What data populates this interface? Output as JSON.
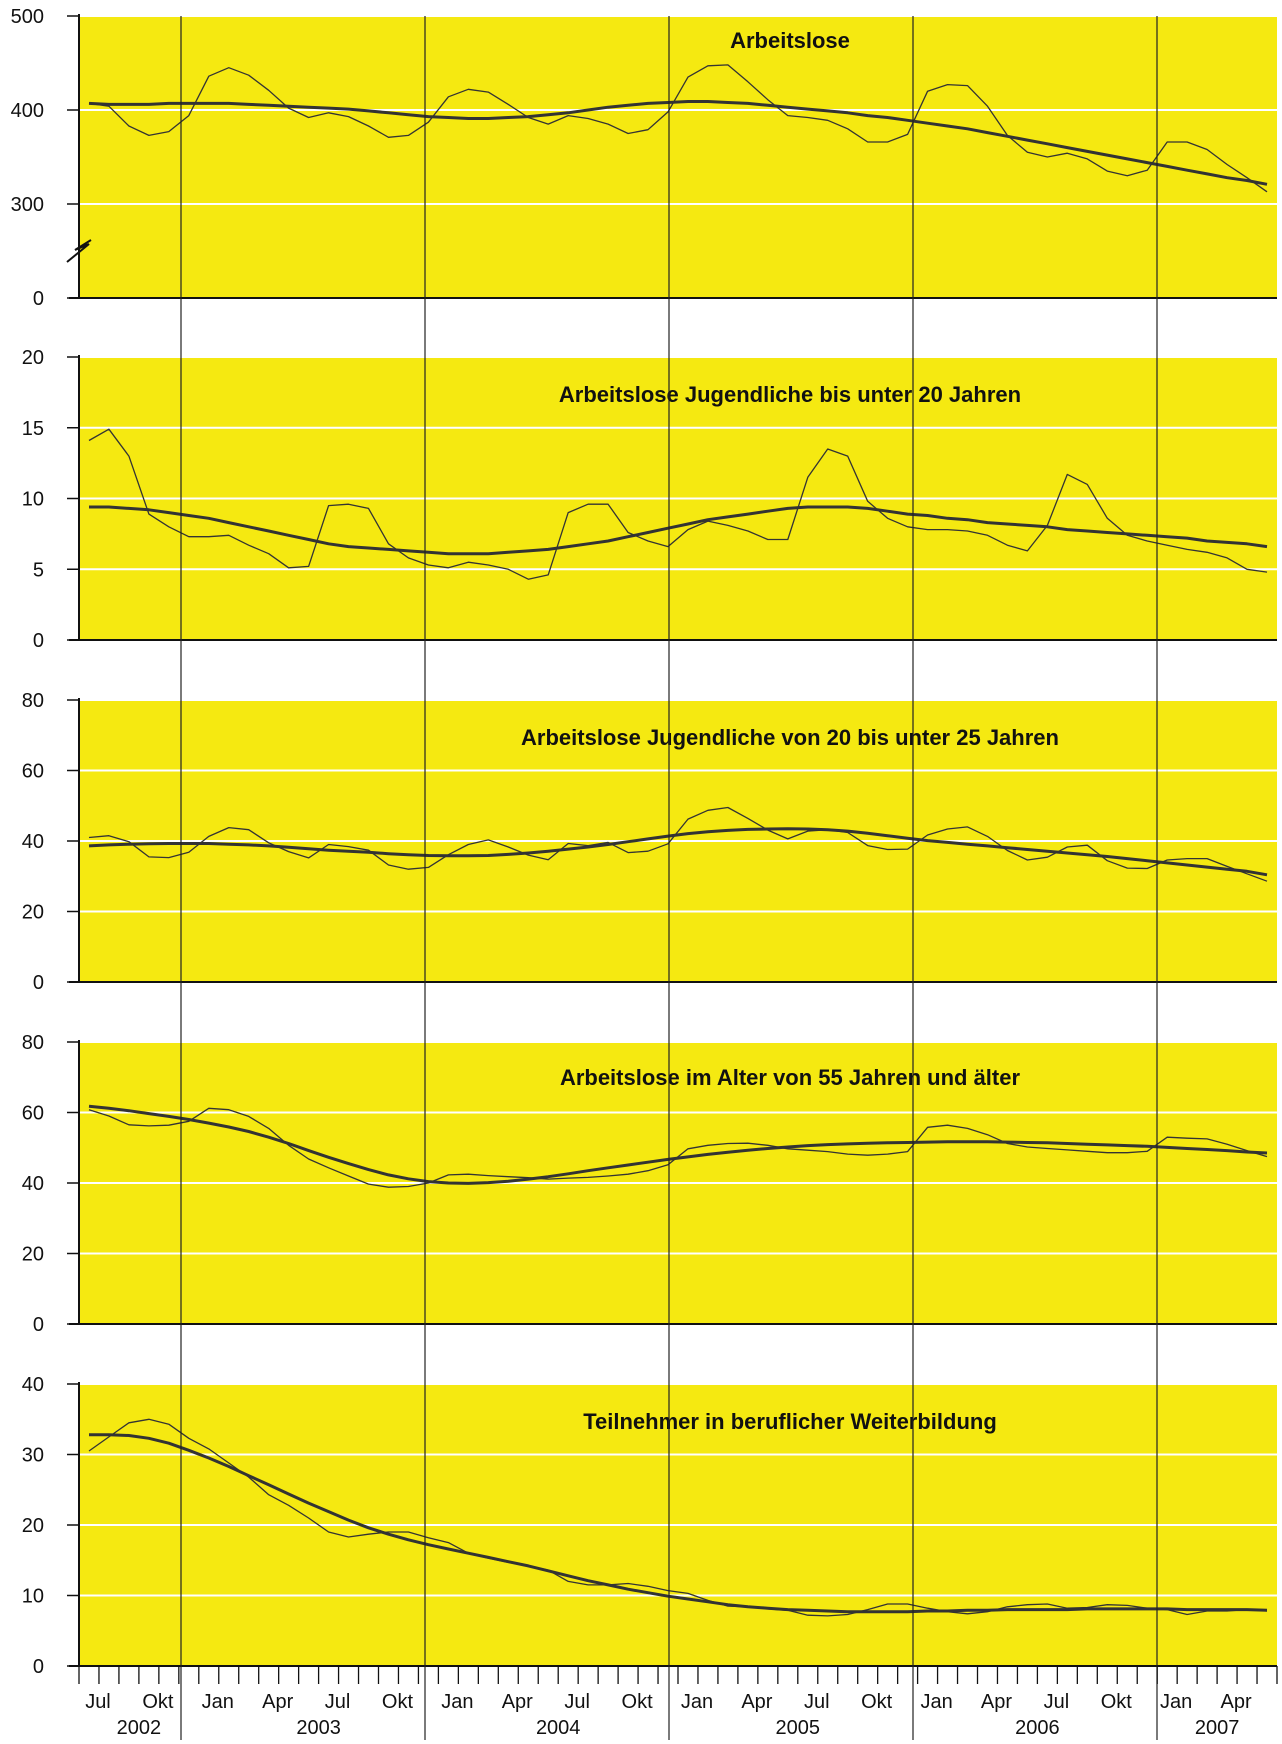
{
  "chart_data": {
    "type": "line",
    "x_month_labels": [
      "Jul",
      "",
      "",
      "Okt",
      "",
      "",
      "Jan",
      "",
      "",
      "Apr",
      "",
      "",
      "Jul",
      "",
      "",
      "Okt",
      "",
      "",
      "Jan",
      "",
      "",
      "Apr",
      "",
      "",
      "Jul",
      "",
      "",
      "Okt",
      "",
      "",
      "Jan",
      "",
      "",
      "Apr",
      "",
      "",
      "Jul",
      "",
      "",
      "Okt",
      "",
      "",
      "Jan",
      "",
      "",
      "Apr",
      "",
      "",
      "Jul",
      "",
      "",
      "Okt",
      "",
      "",
      "Jan",
      "",
      "",
      "Apr",
      "",
      ""
    ],
    "x_months": [
      "2002-07",
      "2002-08",
      "2002-09",
      "2002-10",
      "2002-11",
      "2002-12",
      "2003-01",
      "2003-02",
      "2003-03",
      "2003-04",
      "2003-05",
      "2003-06",
      "2003-07",
      "2003-08",
      "2003-09",
      "2003-10",
      "2003-11",
      "2003-12",
      "2004-01",
      "2004-02",
      "2004-03",
      "2004-04",
      "2004-05",
      "2004-06",
      "2004-07",
      "2004-08",
      "2004-09",
      "2004-10",
      "2004-11",
      "2004-12",
      "2005-01",
      "2005-02",
      "2005-03",
      "2005-04",
      "2005-05",
      "2005-06",
      "2005-07",
      "2005-08",
      "2005-09",
      "2005-10",
      "2005-11",
      "2005-12",
      "2006-01",
      "2006-02",
      "2006-03",
      "2006-04",
      "2006-05",
      "2006-06",
      "2006-07",
      "2006-08",
      "2006-09",
      "2006-10",
      "2006-11",
      "2006-12",
      "2007-01",
      "2007-02",
      "2007-03",
      "2007-04",
      "2007-05",
      "2007-06"
    ],
    "year_labels": [
      {
        "label": "2002",
        "start": 0,
        "end": 6
      },
      {
        "label": "2003",
        "start": 6,
        "end": 18
      },
      {
        "label": "2004",
        "start": 18,
        "end": 30
      },
      {
        "label": "2005",
        "start": 30,
        "end": 42
      },
      {
        "label": "2006",
        "start": 42,
        "end": 54
      },
      {
        "label": "2007",
        "start": 54,
        "end": 60
      }
    ],
    "grid": true,
    "background_color": "#f5e911",
    "line_color": "#333333",
    "panels": [
      {
        "title": "Arbeitslose",
        "ylim": [
          0,
          500
        ],
        "yticks": [
          0,
          300,
          400,
          500
        ],
        "axis_break": true,
        "series": [
          {
            "values": [
              407,
              404,
              383,
              373,
              377,
              394,
              436,
              445,
              437,
              421,
              402,
              392,
              397,
              393,
              383,
              371,
              373,
              387,
              414,
              422,
              419,
              406,
              392,
              385,
              394,
              391,
              385,
              375,
              379,
              398,
              435,
              447,
              448,
              430,
              411,
              394,
              392,
              389,
              380,
              366,
              366,
              374,
              420,
              427,
              426,
              404,
              373,
              355,
              350,
              354,
              348,
              335,
              330,
              336,
              366,
              366,
              358,
              342,
              328,
              313
            ]
          },
          {
            "values": [
              407,
              406,
              406,
              406,
              407,
              407,
              407,
              407,
              406,
              405,
              404,
              403,
              402,
              401,
              399,
              397,
              395,
              393,
              392,
              391,
              391,
              392,
              393,
              395,
              397,
              400,
              403,
              405,
              407,
              408,
              409,
              409,
              408,
              407,
              405,
              403,
              401,
              399,
              397,
              394,
              392,
              389,
              386,
              383,
              380,
              376,
              372,
              368,
              364,
              360,
              356,
              352,
              348,
              344,
              340,
              336,
              332,
              328,
              325,
              321
            ]
          }
        ]
      },
      {
        "title": "Arbeitslose Jugendliche bis unter 20 Jahren",
        "ylim": [
          0,
          20
        ],
        "yticks": [
          0,
          5,
          10,
          15,
          20
        ],
        "series": [
          {
            "values": [
              14.1,
              14.9,
              13.0,
              8.9,
              8.0,
              7.3,
              7.3,
              7.4,
              6.7,
              6.1,
              5.1,
              5.2,
              9.5,
              9.6,
              9.3,
              6.8,
              5.8,
              5.3,
              5.1,
              5.5,
              5.3,
              5.0,
              4.3,
              4.6,
              9.0,
              9.6,
              9.6,
              7.6,
              7.0,
              6.6,
              7.8,
              8.4,
              8.1,
              7.7,
              7.1,
              7.1,
              11.5,
              13.5,
              13.0,
              9.8,
              8.6,
              8.0,
              7.8,
              7.8,
              7.7,
              7.4,
              6.7,
              6.3,
              8.1,
              11.7,
              11.0,
              8.6,
              7.4,
              7.0,
              6.7,
              6.4,
              6.2,
              5.8,
              5.0,
              4.8
            ]
          },
          {
            "values": [
              9.4,
              9.4,
              9.3,
              9.2,
              9.0,
              8.8,
              8.6,
              8.3,
              8.0,
              7.7,
              7.4,
              7.1,
              6.8,
              6.6,
              6.5,
              6.4,
              6.3,
              6.2,
              6.1,
              6.1,
              6.1,
              6.2,
              6.3,
              6.4,
              6.6,
              6.8,
              7.0,
              7.3,
              7.6,
              7.9,
              8.2,
              8.5,
              8.7,
              8.9,
              9.1,
              9.3,
              9.4,
              9.4,
              9.4,
              9.3,
              9.1,
              8.9,
              8.8,
              8.6,
              8.5,
              8.3,
              8.2,
              8.1,
              8.0,
              7.8,
              7.7,
              7.6,
              7.5,
              7.4,
              7.3,
              7.2,
              7.0,
              6.9,
              6.8,
              6.6
            ]
          }
        ]
      },
      {
        "title": "Arbeitslose Jugendliche von 20 bis unter 25 Jahren",
        "ylim": [
          0,
          80
        ],
        "yticks": [
          0,
          20,
          40,
          60,
          80
        ],
        "series": [
          {
            "values": [
              41,
              41.5,
              39.8,
              35.5,
              35.3,
              36.8,
              41.3,
              43.8,
              43.2,
              39.5,
              37,
              35.2,
              39,
              38.4,
              37.4,
              33.2,
              32,
              32.5,
              36.1,
              39,
              40.3,
              38.3,
              36,
              34.7,
              39.3,
              38.7,
              39.6,
              36.7,
              37.1,
              39.2,
              46.2,
              48.7,
              49.5,
              46.4,
              43.1,
              40.6,
              42.8,
              43.2,
              42.4,
              38.7,
              37.6,
              37.7,
              41.7,
              43.4,
              44,
              41.3,
              37.3,
              34.6,
              35.4,
              38.3,
              38.8,
              34.4,
              32.3,
              32.2,
              34.6,
              35,
              35,
              32.8,
              30.7,
              28.6
            ]
          },
          {
            "values": [
              38.6,
              38.9,
              39.1,
              39.2,
              39.3,
              39.3,
              39.3,
              39.1,
              38.9,
              38.6,
              38.2,
              37.8,
              37.4,
              37.1,
              36.8,
              36.4,
              36.1,
              35.9,
              35.8,
              35.8,
              35.9,
              36.2,
              36.6,
              37.1,
              37.7,
              38.3,
              39.0,
              39.8,
              40.6,
              41.4,
              42.1,
              42.6,
              43.0,
              43.3,
              43.4,
              43.5,
              43.4,
              43.2,
              42.8,
              42.2,
              41.5,
              40.8,
              40.1,
              39.6,
              39.1,
              38.6,
              38.1,
              37.6,
              37.1,
              36.6,
              36.1,
              35.6,
              35.0,
              34.4,
              33.8,
              33.2,
              32.6,
              32.0,
              31.4,
              30.4
            ]
          }
        ]
      },
      {
        "title": "Arbeitslose im Alter von 55 Jahren und älter",
        "ylim": [
          0,
          80
        ],
        "yticks": [
          0,
          20,
          40,
          60,
          80
        ],
        "series": [
          {
            "values": [
              60.8,
              59,
              56.5,
              56.2,
              56.4,
              57.5,
              61.2,
              60.8,
              58.9,
              55.5,
              50.7,
              46.8,
              44.3,
              42,
              39.7,
              38.8,
              39,
              40,
              42.3,
              42.5,
              42.1,
              41.8,
              41.5,
              41.1,
              41.4,
              41.6,
              42,
              42.5,
              43.5,
              45.2,
              49.7,
              50.7,
              51.2,
              51.3,
              50.7,
              49.7,
              49.3,
              48.9,
              48.2,
              47.9,
              48.2,
              48.9,
              55.8,
              56.4,
              55.5,
              53.7,
              51.2,
              50.2,
              49.8,
              49.4,
              49,
              48.6,
              48.6,
              49,
              53,
              52.7,
              52.5,
              51,
              49.2,
              47.5
            ]
          },
          {
            "values": [
              61.8,
              61.2,
              60.5,
              59.7,
              58.9,
              58.0,
              57.0,
              55.9,
              54.6,
              53.0,
              51.2,
              49.2,
              47.3,
              45.5,
              43.8,
              42.3,
              41.2,
              40.4,
              40.0,
              39.9,
              40.1,
              40.5,
              41.1,
              41.8,
              42.6,
              43.5,
              44.3,
              45.1,
              45.9,
              46.7,
              47.4,
              48.1,
              48.7,
              49.3,
              49.8,
              50.2,
              50.6,
              50.9,
              51.1,
              51.3,
              51.4,
              51.5,
              51.6,
              51.7,
              51.7,
              51.7,
              51.6,
              51.5,
              51.4,
              51.2,
              51.0,
              50.8,
              50.6,
              50.4,
              50.1,
              49.8,
              49.5,
              49.2,
              48.8,
              48.5
            ]
          }
        ]
      },
      {
        "title": "Teilnehmer in beruflicher Weiterbildung",
        "ylim": [
          0,
          40
        ],
        "yticks": [
          0,
          10,
          20,
          30,
          40
        ],
        "series": [
          {
            "values": [
              30.5,
              32.5,
              34.5,
              35,
              34.3,
              32.3,
              30.8,
              28.8,
              26.8,
              24.3,
              22.8,
              21,
              19,
              18.3,
              18.7,
              19,
              19,
              18.2,
              17.5,
              16,
              15.3,
              14.7,
              14.2,
              13.6,
              12,
              11.5,
              11.5,
              11.7,
              11.3,
              10.7,
              10.3,
              9.3,
              8.5,
              8.4,
              8.1,
              7.9,
              7.2,
              7.1,
              7.3,
              8,
              8.8,
              8.8,
              8.2,
              7.7,
              7.4,
              7.7,
              8.4,
              8.7,
              8.8,
              8.2,
              8.3,
              8.7,
              8.6,
              8.2,
              8,
              7.3,
              7.8,
              7.8,
              8,
              7.8
            ]
          },
          {
            "values": [
              32.8,
              32.8,
              32.7,
              32.3,
              31.6,
              30.6,
              29.5,
              28.3,
              27.0,
              25.7,
              24.4,
              23.1,
              21.9,
              20.7,
              19.6,
              18.7,
              17.9,
              17.2,
              16.6,
              16.0,
              15.4,
              14.8,
              14.2,
              13.5,
              12.8,
              12.1,
              11.5,
              10.9,
              10.4,
              9.9,
              9.5,
              9.1,
              8.7,
              8.4,
              8.2,
              8.0,
              7.9,
              7.8,
              7.7,
              7.7,
              7.7,
              7.7,
              7.8,
              7.8,
              7.9,
              7.9,
              8.0,
              8.0,
              8.0,
              8.0,
              8.1,
              8.1,
              8.1,
              8.1,
              8.1,
              8.0,
              8.0,
              8.0,
              8.0,
              7.9
            ]
          }
        ]
      }
    ]
  }
}
